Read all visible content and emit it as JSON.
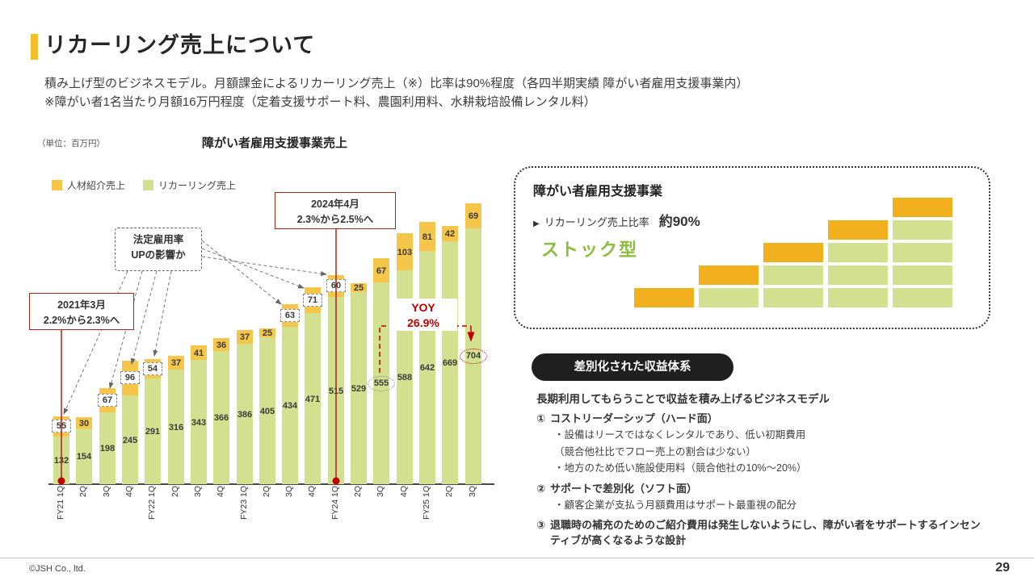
{
  "page": {
    "title": "リカーリング売上について",
    "subtitle_line1": "積み上げ型のビジネスモデル。月額課金によるリカーリング売上（※）比率は90%程度（各四半期実績 障がい者雇用支援事業内）",
    "subtitle_line2": "※障がい者1名当たり月額16万円程度（定着支援サポート料、農園利用料、水耕栽培設備レンタル料）",
    "footer_left": "©JSH Co., ltd.",
    "page_number": "29"
  },
  "chart": {
    "unit_label": "（単位：百万円）",
    "title": "障がい者雇用支援事業売上",
    "legend": [
      {
        "label": "人材紹介売上",
        "color": "#F6C64B"
      },
      {
        "label": "リカーリング売上",
        "color": "#D3E08F"
      }
    ]
  },
  "chart_data": {
    "type": "bar",
    "stacked": true,
    "unit": "百万円",
    "categories": [
      "FY21 1Q",
      "2Q",
      "3Q",
      "4Q",
      "FY22 1Q",
      "2Q",
      "3Q",
      "4Q",
      "FY23 1Q",
      "2Q",
      "3Q",
      "4Q",
      "FY24 1Q",
      "2Q",
      "3Q",
      "4Q",
      "FY25 1Q",
      "2Q",
      "3Q"
    ],
    "series": [
      {
        "name": "リカーリング売上",
        "color": "#D3E08F",
        "values": [
          132,
          154,
          198,
          245,
          291,
          316,
          343,
          366,
          386,
          405,
          434,
          471,
          515,
          529,
          555,
          588,
          642,
          669,
          704
        ]
      },
      {
        "name": "人材紹介売上",
        "color": "#F6C64B",
        "values": [
          55,
          30,
          67,
          96,
          54,
          37,
          41,
          36,
          37,
          25,
          63,
          71,
          60,
          25,
          67,
          103,
          81,
          42,
          69
        ]
      }
    ],
    "boxed_label_indices": [
      0,
      2,
      3,
      4,
      10,
      11,
      12
    ],
    "circled_labels": [
      {
        "series": 0,
        "index": 14,
        "color": "#8a8a8a"
      },
      {
        "series": 0,
        "index": 18,
        "color": "#C00000"
      }
    ],
    "annotations": {
      "rate2021": {
        "line1": "2021年3月",
        "line2": "2.2%から2.3%へ"
      },
      "rate2024": {
        "line1": "2024年4月",
        "line2": "2.3%から2.5%へ"
      },
      "statutory": {
        "line1": "法定雇用率",
        "line2": "UPの影響か"
      },
      "yoy": {
        "line1": "YOY",
        "line2": "26.9%"
      }
    }
  },
  "panel": {
    "heading": "障がい者雇用支援事業",
    "ratio_bullet": "▶",
    "ratio_label": "リカーリング売上比率",
    "ratio_value": "約90%",
    "stock_label": "ストック型",
    "stair_colors": {
      "yellow": "#F2B01E",
      "green": "#D3E08F"
    },
    "stair_levels": 5
  },
  "profit": {
    "badge": "差別化された収益体系",
    "lead": "長期利用してもらうことで収益を積み上げるビジネスモデル",
    "items": [
      {
        "num": "①",
        "title": "コストリーダーシップ（ハード面）",
        "subs": [
          "・設備はリースではなくレンタルであり、低い初期費用",
          "（競合他社比でフロー売上の割合は少ない）",
          "・地方のため低い施設使用料（競合他社の10%〜20%）"
        ]
      },
      {
        "num": "②",
        "title": "サポートで差別化（ソフト面）",
        "subs": [
          "・顧客企業が支払う月額費用はサポート最重視の配分"
        ]
      },
      {
        "num": "③",
        "title": "退職時の補充のためのご紹介費用は発生しないようにし、障がい者をサポートするインセンティブが高くなるような設計",
        "subs": []
      }
    ]
  }
}
